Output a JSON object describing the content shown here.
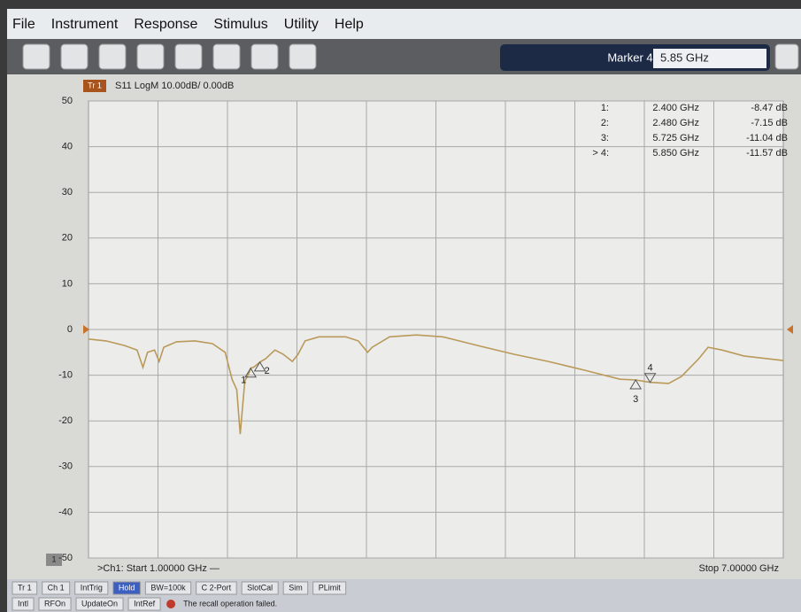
{
  "menu": [
    "File",
    "Instrument",
    "Response",
    "Stimulus",
    "Utility",
    "Help"
  ],
  "marker_box": {
    "label": "Marker 4",
    "value": "5.85 GHz"
  },
  "chart_data": {
    "type": "line",
    "trace": "Tr 1",
    "title": "S11 LogM 10.00dB/ 0.00dB",
    "x": [
      1.0,
      1.15,
      1.31,
      1.42,
      1.47,
      1.51,
      1.57,
      1.61,
      1.65,
      1.76,
      1.92,
      2.07,
      2.18,
      2.24,
      2.28,
      2.31,
      2.35,
      2.39,
      2.4,
      2.43,
      2.48,
      2.53,
      2.61,
      2.68,
      2.76,
      2.81,
      2.87,
      2.99,
      3.22,
      3.33,
      3.41,
      3.45,
      3.6,
      3.83,
      4.06,
      4.36,
      4.67,
      4.97,
      5.28,
      5.59,
      5.725,
      5.85,
      6.01,
      6.12,
      6.27,
      6.35,
      6.47,
      6.66,
      7.0
    ],
    "values": [
      -2.1,
      -2.5,
      -3.5,
      -4.5,
      -8.3,
      -5.0,
      -4.5,
      -7.0,
      -3.9,
      -2.7,
      -2.5,
      -3.1,
      -5.0,
      -10.9,
      -13.2,
      -22.9,
      -11.3,
      -9.3,
      -8.47,
      -8.2,
      -7.15,
      -6.4,
      -4.5,
      -5.4,
      -7.0,
      -5.4,
      -2.5,
      -1.6,
      -1.6,
      -2.5,
      -5.0,
      -3.9,
      -1.6,
      -1.2,
      -1.6,
      -3.5,
      -5.4,
      -7.0,
      -8.9,
      -10.9,
      -11.04,
      -11.57,
      -11.8,
      -10.3,
      -6.4,
      -3.9,
      -4.5,
      -5.8,
      -6.8
    ],
    "color": "#b99a5a",
    "xlim": [
      1,
      7
    ],
    "ylim": [
      -50,
      50
    ],
    "yticks": [
      -50,
      -40,
      -30,
      -20,
      -10,
      0,
      10,
      20,
      30,
      40,
      50
    ],
    "grid": true,
    "markers": {
      "labels": [
        "1",
        "2",
        "3",
        "4"
      ],
      "x": [
        2.4,
        2.48,
        5.725,
        5.85
      ],
      "values": [
        -8.47,
        -7.15,
        -11.04,
        -11.57
      ]
    },
    "marker_table": [
      [
        "1:",
        "2.400 GHz",
        "-8.47 dB"
      ],
      [
        "2:",
        "2.480 GHz",
        "-7.15 dB"
      ],
      [
        "3:",
        "5.725 GHz",
        "-11.04 dB"
      ],
      [
        "> 4:",
        "5.850 GHz",
        "-11.57 dB"
      ]
    ],
    "start": ">Ch1: Start  1.00000 GHz —",
    "stop": "Stop  7.00000 GHz",
    "channel": "1"
  },
  "status_bar": {
    "row1": [
      "Tr 1",
      "Ch 1",
      "IntTrig",
      "Hold",
      "BW=100k",
      "C 2-Port",
      "SlotCal",
      "Sim",
      "PLimit"
    ],
    "row2": [
      "Intl",
      "RFOn",
      "UpdateOn",
      "IntRef",
      "The recall operation failed."
    ]
  }
}
